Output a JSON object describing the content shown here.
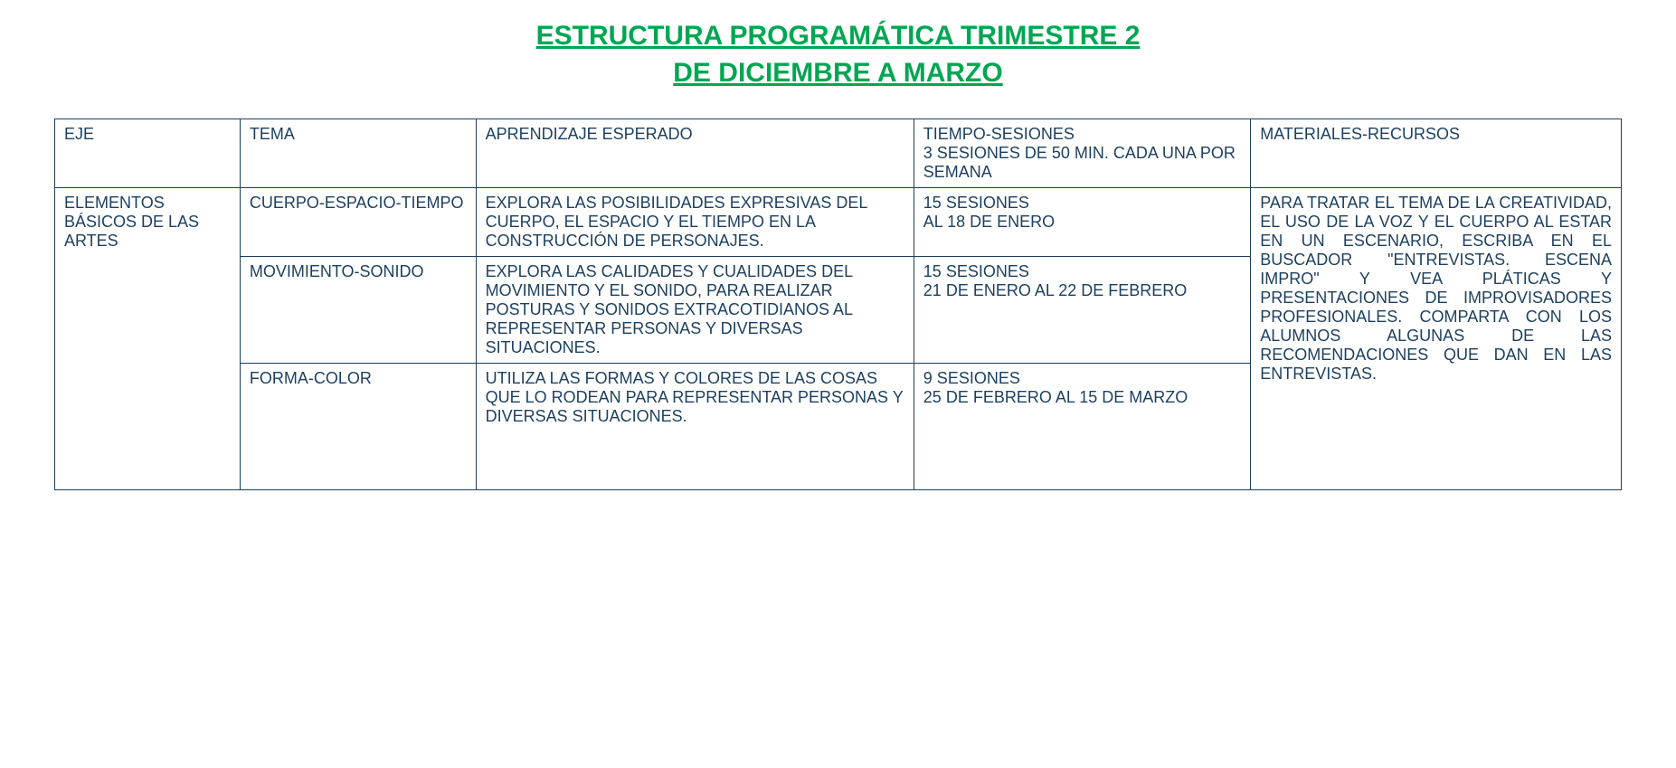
{
  "title": {
    "line1": "ESTRUCTURA PROGRAMÁTICA TRIMESTRE 2",
    "line2": "DE DICIEMBRE A MARZO"
  },
  "table": {
    "headers": {
      "eje": "EJE",
      "tema": "TEMA",
      "aprendizaje": "APRENDIZAJE ESPERADO",
      "tiempo_l1": "TIEMPO-SESIONES",
      "tiempo_l2": "3 SESIONES DE 50 MIN. CADA UNA POR SEMANA",
      "materiales": "MATERIALES-RECURSOS"
    },
    "eje_value": "ELEMENTOS BÁSICOS DE LAS ARTES",
    "rows": [
      {
        "tema": "CUERPO-ESPACIO-TIEMPO",
        "aprendizaje": "EXPLORA LAS POSIBILIDADES EXPRESIVAS DEL CUERPO, EL ESPACIO Y EL TIEMPO EN LA CONSTRUCCIÓN DE PERSONAJES.",
        "tiempo_l1": "15 SESIONES",
        "tiempo_l2": "AL 18  DE ENERO"
      },
      {
        "tema": "MOVIMIENTO-SONIDO",
        "aprendizaje": "EXPLORA LAS CALIDADES Y CUALIDADES DEL MOVIMIENTO Y EL SONIDO, PARA REALIZAR POSTURAS Y SONIDOS EXTRACOTIDIANOS AL REPRESENTAR PERSONAS Y DIVERSAS SITUACIONES.",
        "tiempo_l1": "15  SESIONES",
        "tiempo_l2": "21 DE ENERO AL 22 DE FEBRERO"
      },
      {
        "tema": "FORMA-COLOR",
        "aprendizaje": "UTILIZA LAS FORMAS Y COLORES DE LAS COSAS QUE LO RODEAN PARA REPRESENTAR PERSONAS Y DIVERSAS SITUACIONES.",
        "tiempo_l1": " 9 SESIONES",
        "tiempo_l2": "25 DE FEBRERO AL 15 DE MARZO"
      }
    ],
    "materiales_value": "PARA TRATAR EL TEMA DE LA CREATIVIDAD, EL USO DE LA VOZ Y EL CUERPO AL ESTAR EN UN ESCENARIO, ESCRIBA EN EL BUSCADOR \"ENTREVISTAS. ESCENA IMPRO\" Y VEA PLÁTICAS Y PRESENTACIONES DE IMPROVISADORES PROFESIONALES. COMPARTA CON LOS ALUMNOS ALGUNAS DE LAS RECOMENDACIONES QUE DAN EN LAS ENTREVISTAS."
  }
}
